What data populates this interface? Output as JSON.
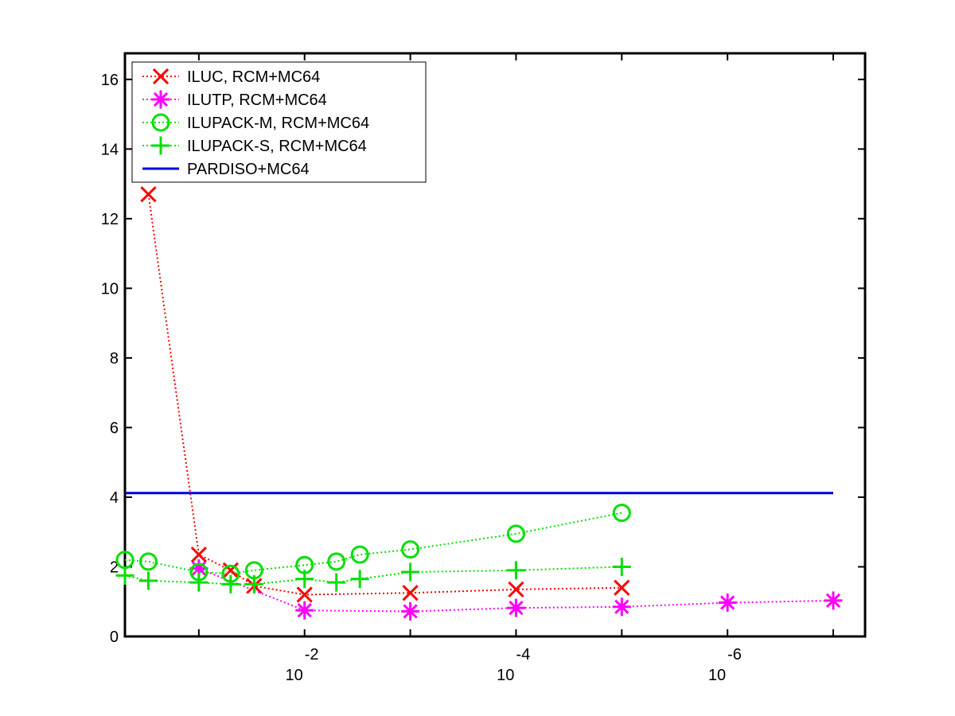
{
  "chart_data": {
    "type": "line",
    "title": "",
    "xlabel": "",
    "ylabel": "",
    "x_scale": "log",
    "x_reversed": true,
    "xlim": [
      0.5,
      5e-08
    ],
    "ylim": [
      0,
      16.75
    ],
    "grid": false,
    "legend_position": "top-left",
    "yticks": [
      0,
      2,
      4,
      6,
      8,
      10,
      12,
      14,
      16
    ],
    "yticklabels": [
      "0",
      "2",
      "4",
      "6",
      "8",
      "10",
      "12",
      "14",
      "16"
    ],
    "xticks": [
      {
        "value": 0.01,
        "base": "10",
        "exponent": "-2"
      },
      {
        "value": 0.0001,
        "base": "10",
        "exponent": "-4"
      },
      {
        "value": 1e-06,
        "base": "10",
        "exponent": "-6"
      }
    ],
    "series": [
      {
        "name": "ILUC, RCM+MC64",
        "color": "#ff0000",
        "marker": "x",
        "line_style": "dotted",
        "points": [
          [
            0.3,
            12.7
          ],
          [
            0.1,
            2.35
          ],
          [
            0.05,
            1.9
          ],
          [
            0.03,
            1.45
          ],
          [
            0.01,
            1.2
          ],
          [
            0.001,
            1.25
          ],
          [
            0.0001,
            1.35
          ],
          [
            1e-05,
            1.4
          ]
        ]
      },
      {
        "name": "ILUTP, RCM+MC64",
        "color": "#ff00ff",
        "marker": "asterisk",
        "line_style": "dotted",
        "points": [
          [
            0.1,
            1.95
          ],
          [
            0.01,
            0.75
          ],
          [
            0.001,
            0.72
          ],
          [
            0.0001,
            0.82
          ],
          [
            1e-05,
            0.85
          ],
          [
            1e-06,
            0.97
          ],
          [
            1e-07,
            1.03
          ]
        ]
      },
      {
        "name": "ILUPACK-M, RCM+MC64",
        "color": "#00e000",
        "marker": "circle",
        "line_style": "dotted",
        "points": [
          [
            0.5,
            2.2
          ],
          [
            0.3,
            2.15
          ],
          [
            0.1,
            1.85
          ],
          [
            0.05,
            1.8
          ],
          [
            0.03,
            1.9
          ],
          [
            0.01,
            2.05
          ],
          [
            0.005,
            2.15
          ],
          [
            0.003,
            2.35
          ],
          [
            0.001,
            2.5
          ],
          [
            0.0001,
            2.95
          ],
          [
            1e-05,
            3.55
          ]
        ]
      },
      {
        "name": "ILUPACK-S, RCM+MC64",
        "color": "#00e000",
        "marker": "plus",
        "line_style": "dotted",
        "points": [
          [
            0.5,
            1.75
          ],
          [
            0.3,
            1.6
          ],
          [
            0.1,
            1.55
          ],
          [
            0.05,
            1.5
          ],
          [
            0.03,
            1.5
          ],
          [
            0.01,
            1.65
          ],
          [
            0.005,
            1.55
          ],
          [
            0.003,
            1.65
          ],
          [
            0.001,
            1.85
          ],
          [
            0.0001,
            1.9
          ],
          [
            1e-05,
            2.0
          ]
        ]
      },
      {
        "name": "PARDISO+MC64",
        "color": "#0000e0",
        "marker": "none",
        "line_style": "solid",
        "points": [
          [
            0.5,
            4.12
          ],
          [
            1e-07,
            4.12
          ]
        ]
      }
    ]
  }
}
